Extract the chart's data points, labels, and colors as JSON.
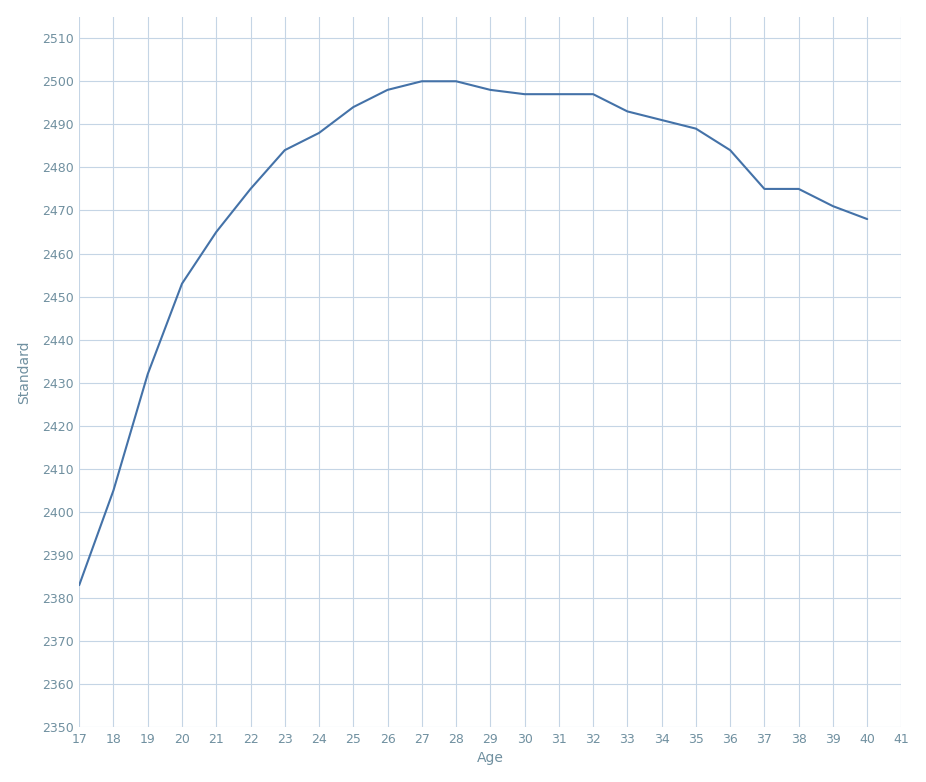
{
  "ages": [
    17,
    18,
    19,
    20,
    21,
    22,
    23,
    24,
    25,
    26,
    27,
    28,
    29,
    30,
    31,
    32,
    33,
    34,
    35,
    36,
    37,
    38,
    39,
    40
  ],
  "ratings": [
    2383,
    2405,
    2432,
    2453,
    2465,
    2475,
    2484,
    2488,
    2494,
    2498,
    2500,
    2500,
    2498,
    2497,
    2497,
    2497,
    2493,
    2491,
    2489,
    2484,
    2475,
    2475,
    2471,
    2468
  ],
  "xlabel": "Age",
  "ylabel": "Standard",
  "line_color": "#4472a8",
  "background_color": "#ffffff",
  "grid_color": "#c5d5e5",
  "tick_color": "#7090a0",
  "label_color": "#7090a0",
  "ylim": [
    2350,
    2515
  ],
  "ytick_step": 10,
  "xtick_start": 17,
  "xtick_end": 41
}
